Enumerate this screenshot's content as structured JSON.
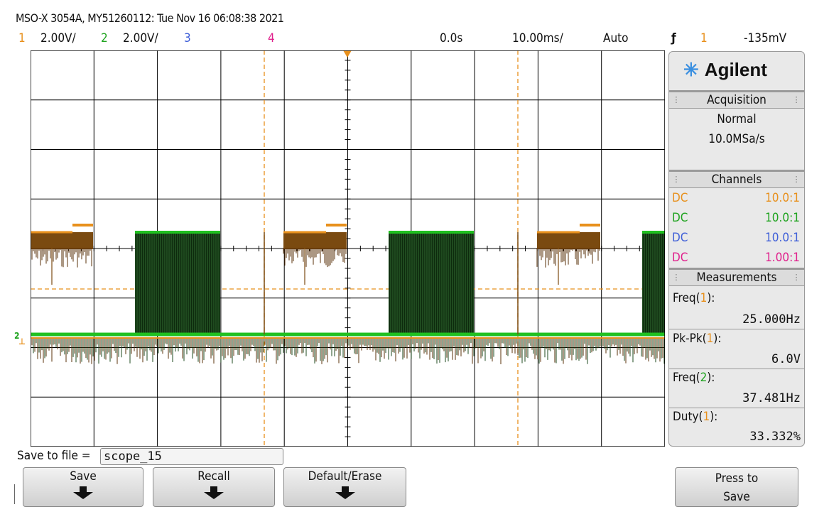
{
  "title": "MSO-X 3054A, MY51260112: Tue Nov 16 06:08:38 2021",
  "header": {
    "ch1_num": "1",
    "ch1_scale": "2.00V/",
    "ch2_num": "2",
    "ch2_scale": "2.00V/",
    "ch3_num": "3",
    "ch4_num": "4",
    "time_offset": "0.0s",
    "time_scale": "10.00ms/",
    "trigger_mode": "Auto",
    "trigger_slope_icon": "falling-edge-icon",
    "trigger_source": "1",
    "trigger_level": "-135mV"
  },
  "panel": {
    "brand": "Agilent",
    "acquisition_title": "Acquisition",
    "acquisition_mode": "Normal",
    "sample_rate": "10.0MSa/s",
    "channels_title": "Channels",
    "channels": [
      {
        "coupling": "DC",
        "probe": "10.0:1",
        "color": "#e8901c"
      },
      {
        "coupling": "DC",
        "probe": "10.0:1",
        "color": "#1fa31f"
      },
      {
        "coupling": "DC",
        "probe": "10.0:1",
        "color": "#4060d8"
      },
      {
        "coupling": "DC",
        "probe": "1.00:1",
        "color": "#e0208c"
      }
    ],
    "measurements_title": "Measurements",
    "measurements": [
      {
        "name": "Freq(",
        "src": "1",
        "close": "):",
        "value": "25.000Hz"
      },
      {
        "name": "Pk-Pk(",
        "src": "1",
        "close": "):",
        "value": "6.0V"
      },
      {
        "name": "Freq(",
        "src": "2",
        "close": "):",
        "value": "37.481Hz"
      },
      {
        "name": "Duty(",
        "src": "1",
        "close": "):",
        "value": "33.332%"
      }
    ]
  },
  "softkeys": {
    "save_to_file_label": "Save to file =",
    "filename": "scope_15",
    "save": "Save",
    "recall": "Recall",
    "default_erase": "Default/Erase",
    "press_to_save_1": "Press to",
    "press_to_save_2": "Save"
  },
  "colors": {
    "ch1": "#e8901c",
    "ch2": "#1fa31f",
    "ch3": "#4060d8",
    "ch4": "#e0208c"
  }
}
